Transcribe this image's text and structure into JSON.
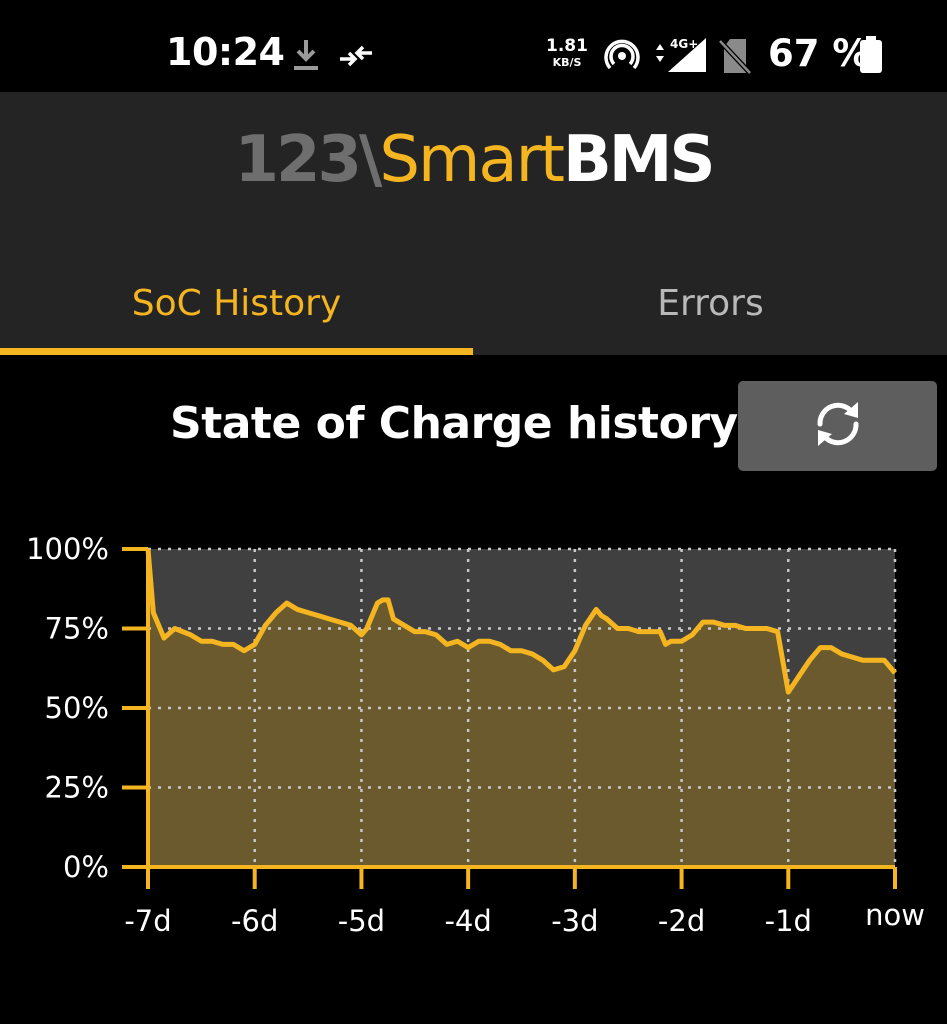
{
  "status_bar": {
    "time": "10:24",
    "speed_value": "1.81",
    "speed_unit": "KB/S",
    "network": "4G+",
    "battery_percent": "67 %",
    "icons": [
      "download-icon",
      "data-saver-icon",
      "hotspot-icon",
      "signal-icon",
      "no-sim-icon",
      "battery-icon"
    ]
  },
  "header": {
    "logo_number": "123\\",
    "logo_smart": "Smart",
    "logo_bms": "BMS"
  },
  "tabs": [
    {
      "label": "SoC History",
      "active": true
    },
    {
      "label": "Errors",
      "active": false
    }
  ],
  "main": {
    "title": "State of Charge history",
    "refresh_icon": "refresh-icon"
  },
  "colors": {
    "accent": "#f4b521",
    "header_bg": "#242424",
    "plot_bg": "#404040",
    "area_fill": "#6b5a2e",
    "button_bg": "#5e5e5e"
  },
  "chart_data": {
    "type": "area",
    "title": "",
    "xlabel": "",
    "ylabel": "",
    "x_tick_labels": [
      "-7d",
      "-6d",
      "-5d",
      "-4d",
      "-3d",
      "-2d",
      "-1d",
      "now"
    ],
    "y_tick_labels": [
      "100%",
      "75%",
      "50%",
      "25%",
      "0%"
    ],
    "xlim": [
      -7,
      0
    ],
    "ylim": [
      0,
      100
    ],
    "grid": true,
    "series": [
      {
        "x": [
          -7.0,
          -6.95,
          -6.85,
          -6.75,
          -6.6,
          -6.5,
          -6.4,
          -6.3,
          -6.2,
          -6.1,
          -6.0,
          -5.9,
          -5.8,
          -5.7,
          -5.6,
          -5.5,
          -5.4,
          -5.3,
          -5.2,
          -5.1,
          -5.0,
          -4.95,
          -4.85,
          -4.8,
          -4.75,
          -4.7,
          -4.6,
          -4.5,
          -4.4,
          -4.3,
          -4.2,
          -4.1,
          -4.0,
          -3.9,
          -3.8,
          -3.7,
          -3.6,
          -3.5,
          -3.4,
          -3.3,
          -3.2,
          -3.1,
          -3.0,
          -2.9,
          -2.8,
          -2.75,
          -2.7,
          -2.6,
          -2.5,
          -2.4,
          -2.3,
          -2.2,
          -2.15,
          -2.1,
          -2.0,
          -1.9,
          -1.8,
          -1.7,
          -1.6,
          -1.5,
          -1.4,
          -1.3,
          -1.2,
          -1.1,
          -1.0,
          -0.9,
          -0.8,
          -0.7,
          -0.6,
          -0.5,
          -0.4,
          -0.3,
          -0.2,
          -0.1,
          0.0
        ],
        "values": [
          100,
          80,
          72,
          75,
          73,
          71,
          71,
          70,
          70,
          68,
          70,
          76,
          80,
          83,
          81,
          80,
          79,
          78,
          77,
          76,
          73,
          75,
          83,
          84,
          84,
          78,
          76,
          74,
          74,
          73,
          70,
          71,
          69,
          71,
          71,
          70,
          68,
          68,
          67,
          65,
          62,
          63,
          68,
          76,
          81,
          79,
          78,
          75,
          75,
          74,
          74,
          74,
          70,
          71,
          71,
          73,
          77,
          77,
          76,
          76,
          75,
          75,
          75,
          74,
          55,
          60,
          65,
          69,
          69,
          67,
          66,
          65,
          65,
          65,
          61
        ]
      }
    ]
  }
}
